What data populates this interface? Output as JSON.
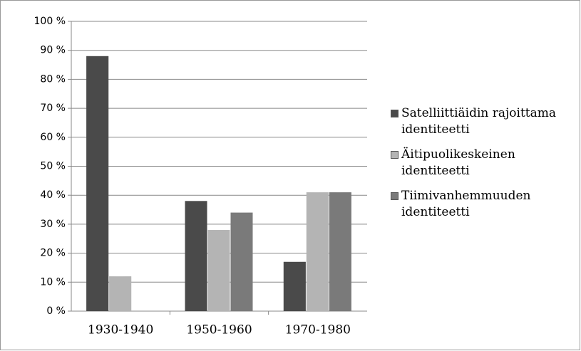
{
  "chart_data": {
    "type": "bar",
    "categories": [
      "1930-1940",
      "1950-1960",
      "1970-1980"
    ],
    "series": [
      {
        "name": "Satelliittiäidin rajoittama identiteetti",
        "color": "#4a4a4a",
        "values": [
          88,
          38,
          17
        ]
      },
      {
        "name": "Äitipuolikeskeinen identiteetti",
        "color": "#b4b4b4",
        "values": [
          12,
          28,
          41
        ]
      },
      {
        "name": "Tiimivanhemmuuden identiteetti",
        "color": "#7a7a7a",
        "values": [
          null,
          34,
          41
        ]
      }
    ],
    "ylim": [
      0,
      100
    ],
    "yticks": [
      {
        "value": 0,
        "label": "0 %"
      },
      {
        "value": 10,
        "label": "10 %"
      },
      {
        "value": 20,
        "label": "20 %"
      },
      {
        "value": 30,
        "label": "30 %"
      },
      {
        "value": 40,
        "label": "40 %"
      },
      {
        "value": 50,
        "label": "50 %"
      },
      {
        "value": 60,
        "label": "60 %"
      },
      {
        "value": 70,
        "label": "70 %"
      },
      {
        "value": 80,
        "label": "80 %"
      },
      {
        "value": 90,
        "label": "90 %"
      },
      {
        "value": 100,
        "label": "100 %"
      }
    ],
    "grid": true,
    "legend": "right"
  }
}
